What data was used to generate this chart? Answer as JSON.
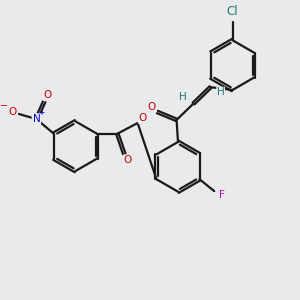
{
  "background_color": "#e8eaec",
  "bond_color": "#1a1a1a",
  "atom_colors": {
    "O": "#cc0000",
    "N": "#0000cc",
    "F": "#bb00bb",
    "Cl": "#227777",
    "H": "#227777",
    "C": "#1a1a1a"
  },
  "figsize": [
    3.0,
    3.0
  ],
  "dpi": 100
}
